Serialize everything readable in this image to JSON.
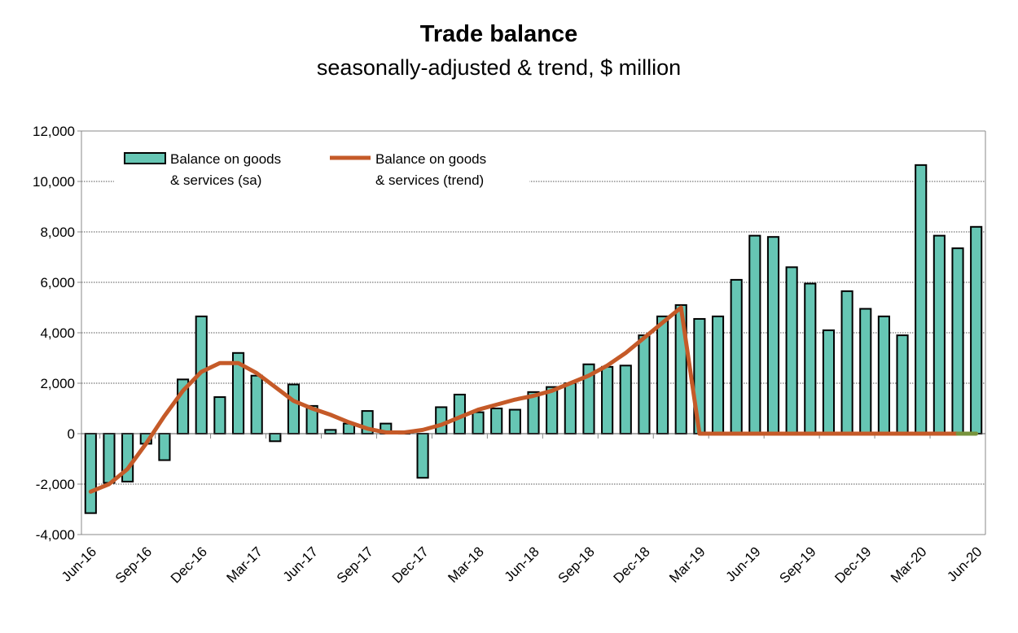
{
  "chart_data": {
    "type": "bar",
    "title": "Trade balance",
    "subtitle": "seasonally-adjusted & trend, $ million",
    "xlabel": "",
    "ylabel": "",
    "ylim": [
      -4000,
      12000
    ],
    "yticks": [
      -4000,
      -2000,
      0,
      2000,
      4000,
      6000,
      8000,
      10000,
      12000
    ],
    "ytick_labels": [
      "-4,000",
      "-2,000",
      "0",
      "2,000",
      "4,000",
      "6,000",
      "8,000",
      "10,000",
      "12,000"
    ],
    "grid": "horizontal dotted",
    "legend": "top-left, inside",
    "categories": [
      "Jun-16",
      "Jul-16",
      "Aug-16",
      "Sep-16",
      "Oct-16",
      "Nov-16",
      "Dec-16",
      "Jan-17",
      "Feb-17",
      "Mar-17",
      "Apr-17",
      "May-17",
      "Jun-17",
      "Jul-17",
      "Aug-17",
      "Sep-17",
      "Oct-17",
      "Nov-17",
      "Dec-17",
      "Jan-18",
      "Feb-18",
      "Mar-18",
      "Apr-18",
      "May-18",
      "Jun-18",
      "Jul-18",
      "Aug-18",
      "Sep-18",
      "Oct-18",
      "Nov-18",
      "Dec-18",
      "Jan-19",
      "Feb-19",
      "Mar-19",
      "Apr-19",
      "May-19",
      "Jun-19",
      "Jul-19",
      "Aug-19",
      "Sep-19",
      "Oct-19",
      "Nov-19",
      "Dec-19",
      "Jan-20",
      "Feb-20",
      "Mar-20",
      "Apr-20",
      "May-20",
      "Jun-20"
    ],
    "xtick_labels": [
      "Jun-16",
      "Sep-16",
      "Dec-16",
      "Mar-17",
      "Jun-17",
      "Sep-17",
      "Dec-17",
      "Mar-18",
      "Jun-18",
      "Sep-18",
      "Dec-18",
      "Mar-19",
      "Jun-19",
      "Sep-19",
      "Dec-19",
      "Mar-20",
      "Jun-20"
    ],
    "series": [
      {
        "name": "Balance on goods & services (sa)",
        "type": "bar",
        "color": "#66C6B4",
        "values": [
          -3150,
          -1950,
          -1900,
          -400,
          -1050,
          2150,
          4650,
          1450,
          3200,
          2300,
          -300,
          1950,
          1100,
          150,
          400,
          900,
          400,
          30,
          -1750,
          1050,
          1550,
          850,
          1000,
          950,
          1650,
          1850,
          2000,
          2750,
          2650,
          2700,
          3900,
          4650,
          5100,
          4550,
          4650,
          6100,
          7850,
          7800,
          6600,
          5950,
          4100,
          5650,
          4950,
          4650,
          3900,
          10650,
          7850,
          7350,
          8200
        ]
      },
      {
        "name": "Balance on goods & services (trend)",
        "type": "line",
        "color": "#C55A28",
        "values": [
          -2300,
          -2000,
          -1400,
          -400,
          700,
          1700,
          2450,
          2800,
          2800,
          2400,
          1850,
          1300,
          1000,
          750,
          450,
          200,
          50,
          50,
          150,
          350,
          650,
          950,
          1150,
          1350,
          1500,
          1700,
          2000,
          2300,
          2700,
          3200,
          3800,
          4400,
          5000,
          0,
          0,
          0,
          0,
          0,
          0,
          0,
          0,
          0,
          0,
          0,
          0,
          0,
          0,
          0,
          null
        ]
      },
      {
        "type": "line",
        "color": "#77933C",
        "values": [
          null,
          null,
          null,
          null,
          null,
          null,
          null,
          null,
          null,
          null,
          null,
          null,
          null,
          null,
          null,
          null,
          null,
          null,
          null,
          null,
          null,
          null,
          null,
          null,
          null,
          null,
          null,
          null,
          null,
          null,
          null,
          null,
          null,
          null,
          null,
          null,
          null,
          null,
          null,
          null,
          null,
          null,
          null,
          null,
          null,
          null,
          null,
          0,
          0
        ]
      }
    ],
    "legend_labels": [
      [
        "Balance on goods",
        "& services (sa)"
      ],
      [
        "Balance on goods",
        "& services (trend)"
      ]
    ]
  }
}
